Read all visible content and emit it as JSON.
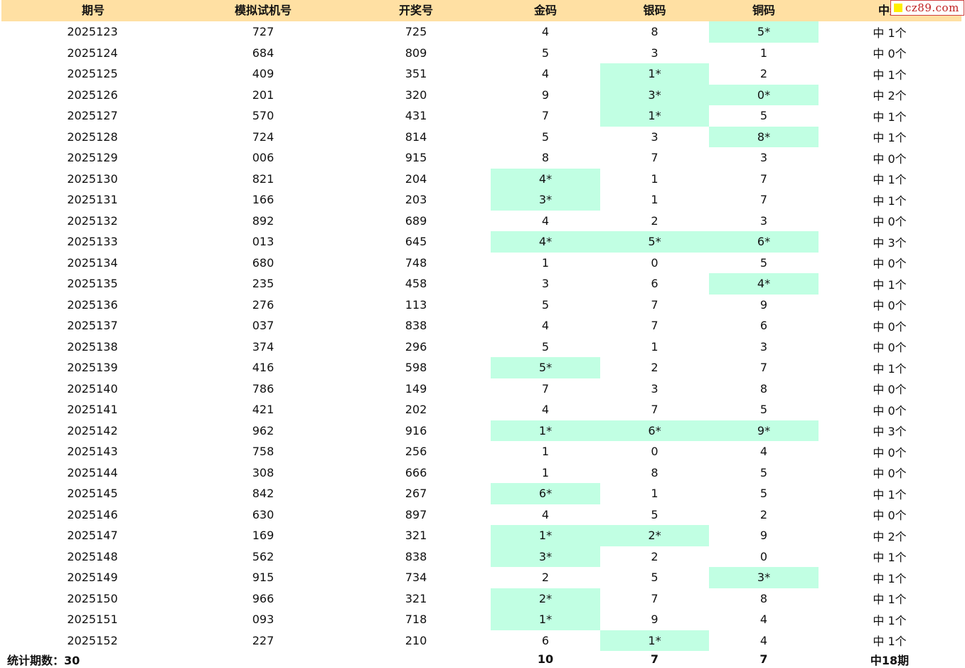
{
  "headers": [
    "期号",
    "模拟试机号",
    "开奖号",
    "金码",
    "银码",
    "铜码",
    "中奖"
  ],
  "watermark": "cz89.com",
  "rows": [
    {
      "period": "2025123",
      "sim": "727",
      "draw": "725",
      "gold": "4",
      "silver": "8",
      "bronze": "5*",
      "hit": "中 1个"
    },
    {
      "period": "2025124",
      "sim": "684",
      "draw": "809",
      "gold": "5",
      "silver": "3",
      "bronze": "1",
      "hit": "中 0个"
    },
    {
      "period": "2025125",
      "sim": "409",
      "draw": "351",
      "gold": "4",
      "silver": "1*",
      "bronze": "2",
      "hit": "中 1个"
    },
    {
      "period": "2025126",
      "sim": "201",
      "draw": "320",
      "gold": "9",
      "silver": "3*",
      "bronze": "0*",
      "hit": "中 2个"
    },
    {
      "period": "2025127",
      "sim": "570",
      "draw": "431",
      "gold": "7",
      "silver": "1*",
      "bronze": "5",
      "hit": "中 1个"
    },
    {
      "period": "2025128",
      "sim": "724",
      "draw": "814",
      "gold": "5",
      "silver": "3",
      "bronze": "8*",
      "hit": "中 1个"
    },
    {
      "period": "2025129",
      "sim": "006",
      "draw": "915",
      "gold": "8",
      "silver": "7",
      "bronze": "3",
      "hit": "中 0个"
    },
    {
      "period": "2025130",
      "sim": "821",
      "draw": "204",
      "gold": "4*",
      "silver": "1",
      "bronze": "7",
      "hit": "中 1个"
    },
    {
      "period": "2025131",
      "sim": "166",
      "draw": "203",
      "gold": "3*",
      "silver": "1",
      "bronze": "7",
      "hit": "中 1个"
    },
    {
      "period": "2025132",
      "sim": "892",
      "draw": "689",
      "gold": "4",
      "silver": "2",
      "bronze": "3",
      "hit": "中 0个"
    },
    {
      "period": "2025133",
      "sim": "013",
      "draw": "645",
      "gold": "4*",
      "silver": "5*",
      "bronze": "6*",
      "hit": "中 3个"
    },
    {
      "period": "2025134",
      "sim": "680",
      "draw": "748",
      "gold": "1",
      "silver": "0",
      "bronze": "5",
      "hit": "中 0个"
    },
    {
      "period": "2025135",
      "sim": "235",
      "draw": "458",
      "gold": "3",
      "silver": "6",
      "bronze": "4*",
      "hit": "中 1个"
    },
    {
      "period": "2025136",
      "sim": "276",
      "draw": "113",
      "gold": "5",
      "silver": "7",
      "bronze": "9",
      "hit": "中 0个"
    },
    {
      "period": "2025137",
      "sim": "037",
      "draw": "838",
      "gold": "4",
      "silver": "7",
      "bronze": "6",
      "hit": "中 0个"
    },
    {
      "period": "2025138",
      "sim": "374",
      "draw": "296",
      "gold": "5",
      "silver": "1",
      "bronze": "3",
      "hit": "中 0个"
    },
    {
      "period": "2025139",
      "sim": "416",
      "draw": "598",
      "gold": "5*",
      "silver": "2",
      "bronze": "7",
      "hit": "中 1个"
    },
    {
      "period": "2025140",
      "sim": "786",
      "draw": "149",
      "gold": "7",
      "silver": "3",
      "bronze": "8",
      "hit": "中 0个"
    },
    {
      "period": "2025141",
      "sim": "421",
      "draw": "202",
      "gold": "4",
      "silver": "7",
      "bronze": "5",
      "hit": "中 0个"
    },
    {
      "period": "2025142",
      "sim": "962",
      "draw": "916",
      "gold": "1*",
      "silver": "6*",
      "bronze": "9*",
      "hit": "中 3个"
    },
    {
      "period": "2025143",
      "sim": "758",
      "draw": "256",
      "gold": "1",
      "silver": "0",
      "bronze": "4",
      "hit": "中 0个"
    },
    {
      "period": "2025144",
      "sim": "308",
      "draw": "666",
      "gold": "1",
      "silver": "8",
      "bronze": "5",
      "hit": "中 0个"
    },
    {
      "period": "2025145",
      "sim": "842",
      "draw": "267",
      "gold": "6*",
      "silver": "1",
      "bronze": "5",
      "hit": "中 1个"
    },
    {
      "period": "2025146",
      "sim": "630",
      "draw": "897",
      "gold": "4",
      "silver": "5",
      "bronze": "2",
      "hit": "中 0个"
    },
    {
      "period": "2025147",
      "sim": "169",
      "draw": "321",
      "gold": "1*",
      "silver": "2*",
      "bronze": "9",
      "hit": "中 2个"
    },
    {
      "period": "2025148",
      "sim": "562",
      "draw": "838",
      "gold": "3*",
      "silver": "2",
      "bronze": "0",
      "hit": "中 1个"
    },
    {
      "period": "2025149",
      "sim": "915",
      "draw": "734",
      "gold": "2",
      "silver": "5",
      "bronze": "3*",
      "hit": "中 1个"
    },
    {
      "period": "2025150",
      "sim": "966",
      "draw": "321",
      "gold": "2*",
      "silver": "7",
      "bronze": "8",
      "hit": "中 1个"
    },
    {
      "period": "2025151",
      "sim": "093",
      "draw": "718",
      "gold": "1*",
      "silver": "9",
      "bronze": "4",
      "hit": "中 1个"
    },
    {
      "period": "2025152",
      "sim": "227",
      "draw": "210",
      "gold": "6",
      "silver": "1*",
      "bronze": "4",
      "hit": "中 1个"
    }
  ],
  "footer": {
    "label": "统计期数：30",
    "gold_total": "10",
    "silver_total": "7",
    "bronze_total": "7",
    "hit_total": "中18期"
  },
  "colors": {
    "header_bg": "#ffe0a3",
    "highlight_bg": "#c1ffe3"
  }
}
